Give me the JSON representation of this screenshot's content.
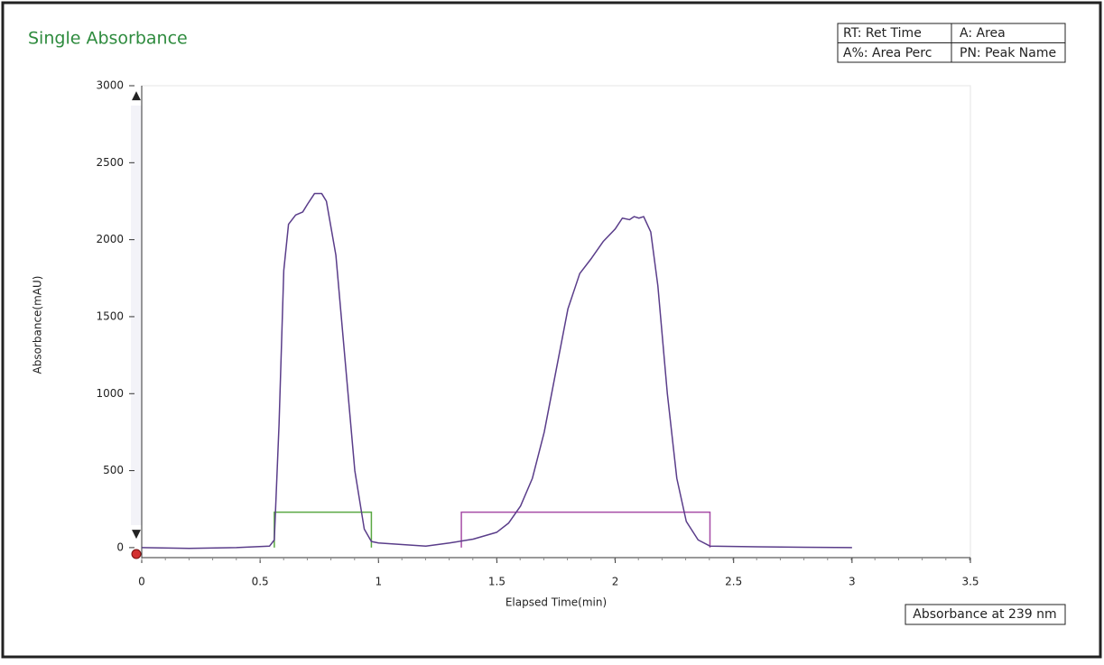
{
  "chart_data": {
    "type": "line",
    "title": "Single Absorbance",
    "x_label": "Elapsed Time(min)",
    "y_label": "Absorbance(mAU)",
    "abbreviations": [
      [
        "RT: Ret Time",
        "A: Area"
      ],
      [
        "A%: Area Perc",
        "PN: Peak Name"
      ]
    ],
    "detector_label": "Absorbance at 239 nm",
    "x": [
      0,
      0.2,
      0.4,
      0.54,
      0.56,
      0.58,
      0.6,
      0.62,
      0.65,
      0.68,
      0.7,
      0.73,
      0.76,
      0.78,
      0.82,
      0.86,
      0.9,
      0.94,
      0.97,
      1.0,
      1.1,
      1.2,
      1.3,
      1.4,
      1.5,
      1.55,
      1.6,
      1.65,
      1.7,
      1.75,
      1.8,
      1.85,
      1.9,
      1.95,
      2.0,
      2.03,
      2.06,
      2.08,
      2.1,
      2.12,
      2.15,
      2.18,
      2.22,
      2.26,
      2.3,
      2.35,
      2.4,
      2.6,
      3.0
    ],
    "series": [
      {
        "color": "#5a3d8a",
        "values": [
          0,
          -5,
          0,
          10,
          50,
          800,
          1800,
          2100,
          2160,
          2180,
          2230,
          2300,
          2300,
          2250,
          1900,
          1200,
          500,
          120,
          40,
          30,
          20,
          10,
          30,
          55,
          100,
          160,
          270,
          450,
          750,
          1150,
          1550,
          1780,
          1880,
          1990,
          2070,
          2140,
          2130,
          2150,
          2140,
          2150,
          2050,
          1700,
          1000,
          450,
          170,
          50,
          10,
          5,
          0
        ]
      }
    ],
    "peak_windows": [
      {
        "color": "#5aa843",
        "start": 0.56,
        "end": 0.97,
        "height": 230
      },
      {
        "color": "#a64ca6",
        "start": 1.35,
        "end": 2.4,
        "height": 230
      }
    ],
    "xlim": [
      0,
      3.5
    ],
    "xticks": [
      0,
      0.5,
      1,
      1.5,
      2,
      2.5,
      3,
      3.5
    ],
    "ylim": [
      -65,
      3000
    ],
    "yticks": [
      0,
      500,
      1000,
      1500,
      2000,
      2500,
      3000
    ]
  }
}
